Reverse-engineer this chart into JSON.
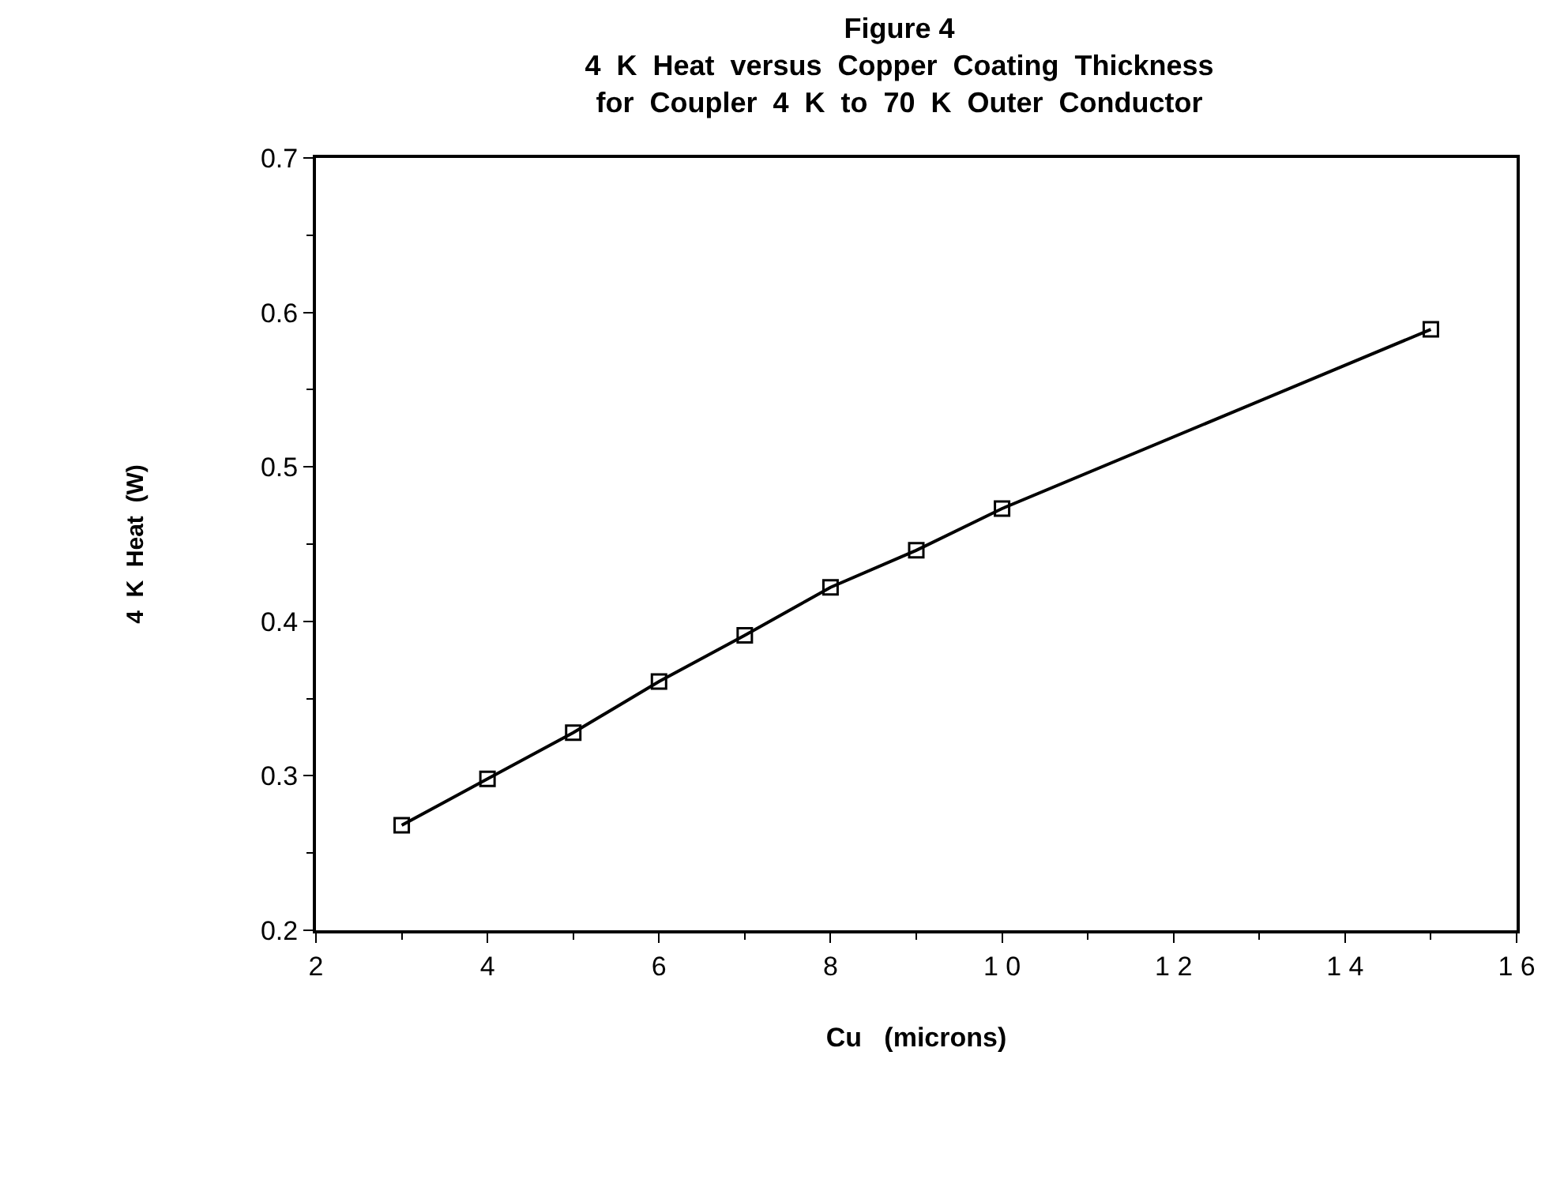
{
  "chart_data": {
    "type": "line",
    "title": "Figure 4\n4  K  Heat  versus  Copper  Coating  Thickness\nfor  Coupler  4  K  to  70  K  Outer  Conductor",
    "xlabel": "Cu   (microns)",
    "ylabel": "4  K  Heat  (W)",
    "x": [
      3,
      4,
      5,
      6,
      7,
      8,
      9,
      10,
      15
    ],
    "series": [
      {
        "color": "#000000",
        "values": [
          0.268,
          0.298,
          0.328,
          0.361,
          0.391,
          0.422,
          0.446,
          0.473,
          0.589
        ]
      }
    ],
    "xlim": [
      2,
      16
    ],
    "xticks": [
      2,
      4,
      6,
      8,
      {
        "value": 10,
        "label": "1 0"
      },
      {
        "value": 12,
        "label": "1 2"
      },
      {
        "value": 14,
        "label": "1 4"
      },
      {
        "value": 16,
        "label": "1 6"
      }
    ],
    "ylim": [
      0.2,
      0.7
    ],
    "yticks": [
      {
        "value": 0.2,
        "label": "0.2"
      },
      {
        "value": 0.3,
        "label": "0.3"
      },
      {
        "value": 0.4,
        "label": "0.4"
      },
      {
        "value": 0.5,
        "label": "0.5"
      },
      {
        "value": 0.6,
        "label": "0.6"
      },
      {
        "value": 0.7,
        "label": "0.7"
      }
    ],
    "grid": false,
    "legend": false,
    "marker": "square",
    "line_style": "solid"
  }
}
